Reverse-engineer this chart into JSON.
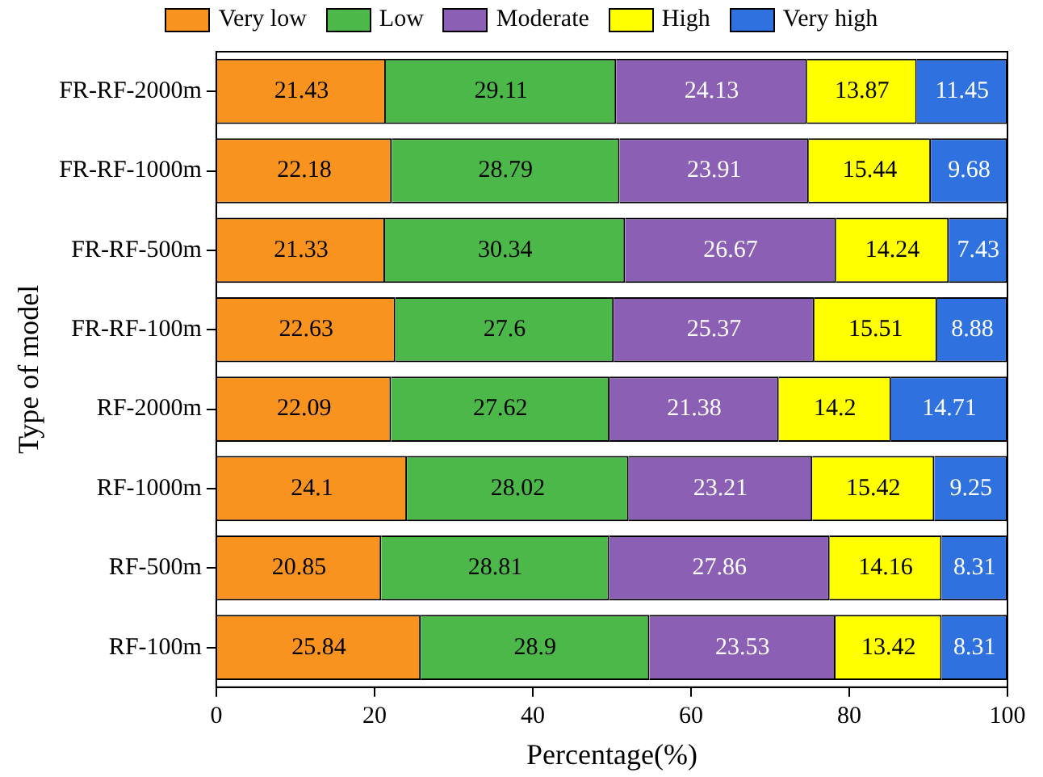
{
  "chart_data": {
    "type": "bar",
    "orientation": "horizontal",
    "stacked": true,
    "xlabel": "Percentage(%)",
    "ylabel": "Type of model",
    "categories": [
      "FR-RF-2000m",
      "FR-RF-1000m",
      "FR-RF-500m",
      "FR-RF-100m",
      "RF-2000m",
      "RF-1000m",
      "RF-500m",
      "RF-100m"
    ],
    "series": [
      {
        "name": "Very low",
        "color": "#f7931e",
        "values": [
          21.43,
          22.18,
          21.33,
          22.63,
          22.09,
          24.1,
          20.85,
          25.84
        ]
      },
      {
        "name": "Low",
        "color": "#4db84a",
        "values": [
          29.11,
          28.79,
          30.34,
          27.6,
          27.62,
          28.02,
          28.81,
          28.9
        ]
      },
      {
        "name": "Moderate",
        "color": "#8b5fb3",
        "values": [
          24.13,
          23.91,
          26.67,
          25.37,
          21.38,
          23.21,
          27.86,
          23.53
        ]
      },
      {
        "name": "High",
        "color": "#ffff00",
        "values": [
          13.87,
          15.44,
          14.24,
          15.51,
          14.2,
          15.42,
          14.16,
          13.42
        ]
      },
      {
        "name": "Very high",
        "color": "#2f72df",
        "values": [
          11.45,
          9.68,
          7.43,
          8.88,
          14.71,
          9.25,
          8.31,
          8.31
        ]
      }
    ],
    "xlim": [
      0,
      100
    ],
    "xticks": [
      0,
      20,
      40,
      60,
      80,
      100
    ],
    "grid": false,
    "legend": "top",
    "data_labels": true
  }
}
